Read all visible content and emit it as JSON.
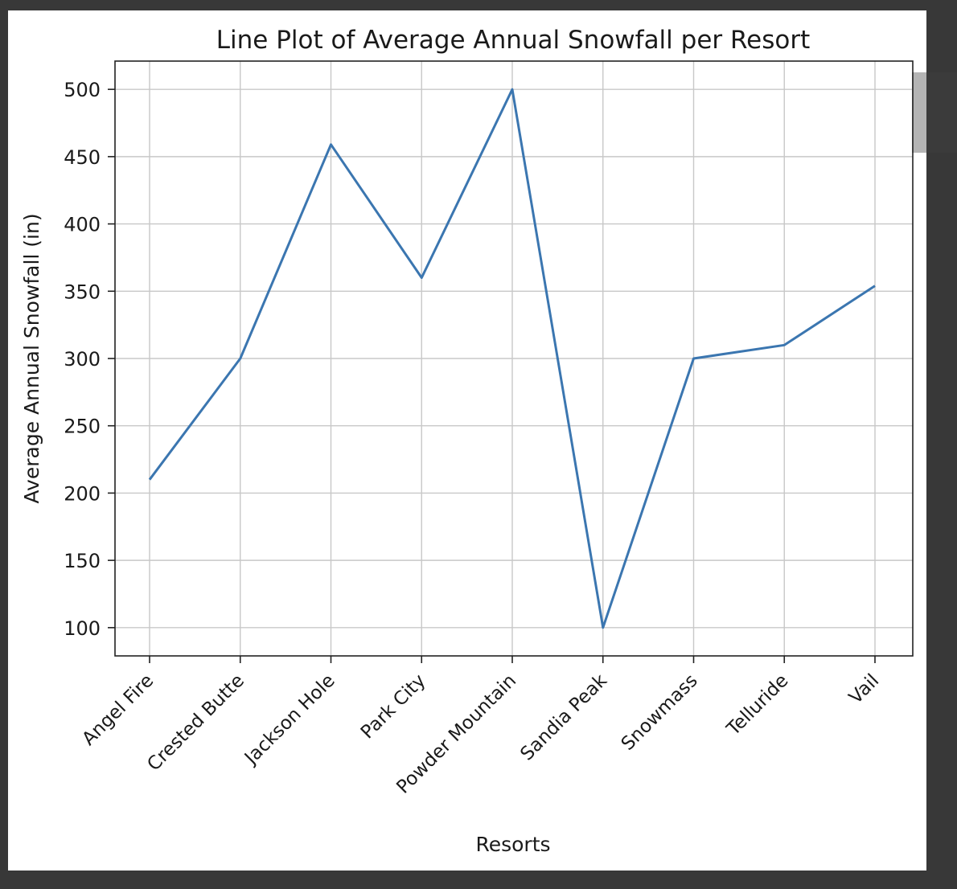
{
  "chart_data": {
    "type": "line",
    "title": "Line Plot of Average Annual Snowfall per Resort",
    "xlabel": "Resorts",
    "ylabel": "Average Annual Snowfall (in)",
    "categories": [
      "Angel Fire",
      "Crested Butte",
      "Jackson Hole",
      "Park City",
      "Powder Mountain",
      "Sandia Peak",
      "Snowmass",
      "Telluride",
      "Vail"
    ],
    "values": [
      210,
      300,
      459,
      360,
      500,
      100,
      300,
      310,
      354
    ],
    "yticks": [
      100,
      150,
      200,
      250,
      300,
      350,
      400,
      450,
      500
    ],
    "ylim": [
      79,
      521
    ],
    "grid": true,
    "line_color": "#3b76b0"
  },
  "colors": {
    "background": "#383838",
    "canvas": "#ffffff",
    "grid": "#c8c8c8"
  }
}
